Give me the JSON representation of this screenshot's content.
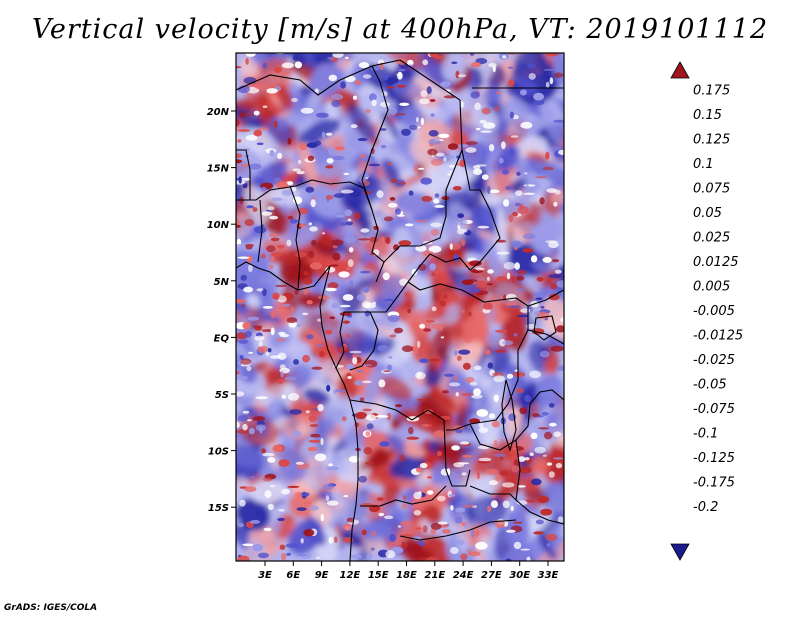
{
  "title": "Vertical velocity [m/s] at 400hPa, VT: 2019101112",
  "credit": "GrADS: IGES/COLA",
  "axes": {
    "x_ticks": [
      "3E",
      "6E",
      "9E",
      "12E",
      "15E",
      "18E",
      "21E",
      "24E",
      "27E",
      "30E",
      "33E"
    ],
    "y_ticks": [
      "20N",
      "15N",
      "10N",
      "5N",
      "EQ",
      "5S",
      "10S",
      "15S"
    ]
  },
  "colorbar": {
    "labels": [
      "0.175",
      "0.15",
      "0.125",
      "0.1",
      "0.075",
      "0.05",
      "0.025",
      "0.0125",
      "0.005",
      "-0.005",
      "-0.0125",
      "-0.025",
      "-0.05",
      "-0.075",
      "-0.1",
      "-0.125",
      "-0.175",
      "-0.2"
    ],
    "colors": [
      "#a0141e",
      "#be2828",
      "#d23c3c",
      "#e05050",
      "#e86b6b",
      "#f08c8c",
      "#f6aaaa",
      "#fac8c8",
      "#fde6e6",
      "#ffffff",
      "#e6e6fa",
      "#c8c8f5",
      "#afafef",
      "#9696e6",
      "#7878dc",
      "#5a5ad2",
      "#3c3cbe",
      "#2828a5",
      "#1a1a8c"
    ],
    "top_color": "#a0141e",
    "bottom_color": "#1a1a8c"
  },
  "colors": {
    "positive": "#c83c3c",
    "negative": "#6a6adf",
    "border": "#000000"
  }
}
